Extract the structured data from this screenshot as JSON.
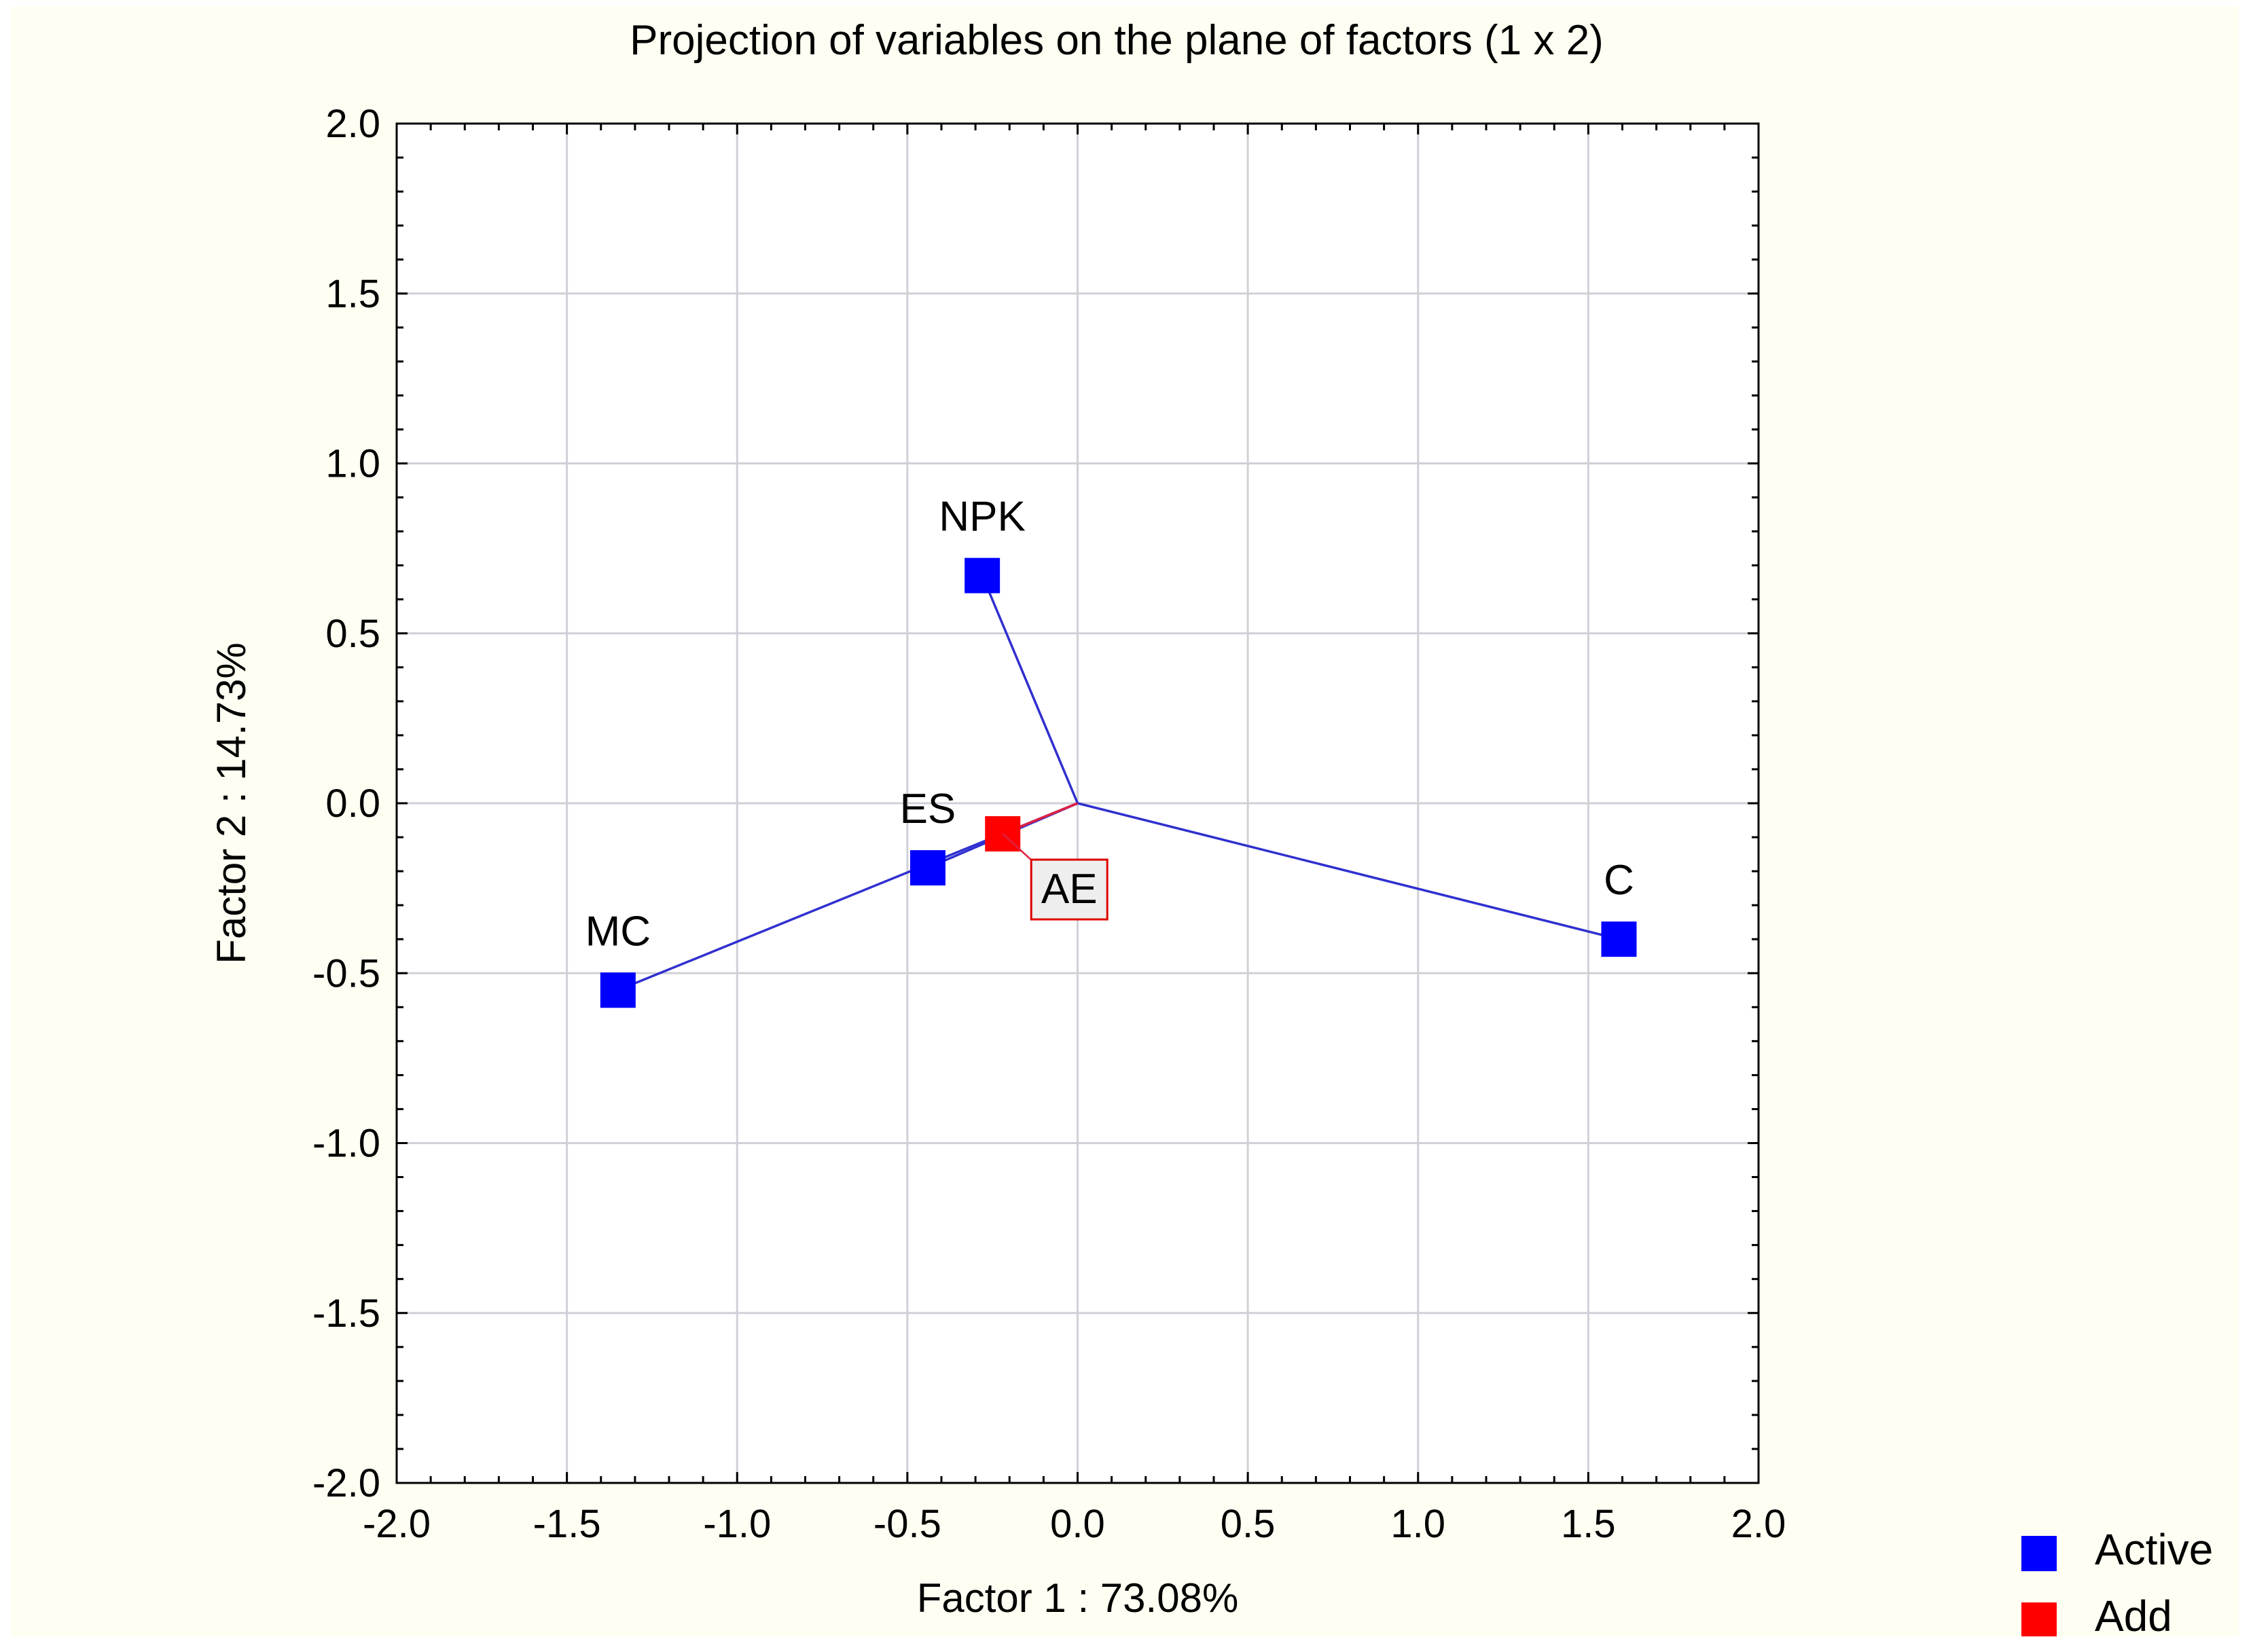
{
  "chart_data": {
    "type": "scatter",
    "title": "Projection of variables on the plane of factors (1 x 2)",
    "xlabel": "Factor 1 : 73.08%",
    "ylabel": "Factor 2 : 14.73%",
    "xlim": [
      -2.0,
      2.0
    ],
    "ylim": [
      -2.0,
      2.0
    ],
    "x_ticks": [
      "-2.0",
      "-1.5",
      "-1.0",
      "-0.5",
      "0.0",
      "0.5",
      "1.0",
      "1.5",
      "2.0"
    ],
    "y_ticks": [
      "2.0",
      "1.5",
      "1.0",
      "0.5",
      "0.0",
      "-0.5",
      "-1.0",
      "-1.5",
      "-2.0"
    ],
    "grid": true,
    "legend_placement": "bottom-right",
    "series": [
      {
        "name": "Active",
        "color": "#0000ff",
        "points": [
          {
            "label": "NPK",
            "x": -0.28,
            "y": 0.67
          },
          {
            "label": "ES",
            "x": -0.44,
            "y": -0.19
          },
          {
            "label": "MC",
            "x": -1.35,
            "y": -0.55
          },
          {
            "label": "C",
            "x": 1.59,
            "y": -0.4
          }
        ]
      },
      {
        "name": "Add",
        "color": "#ff0000",
        "points": [
          {
            "label": "AE",
            "x": -0.22,
            "y": -0.09
          }
        ]
      }
    ],
    "vector_origin": [
      0.0,
      0.0
    ],
    "line_color_active": "#3030d0",
    "line_color_add": "#e02040",
    "grid_color": "#d0d0d8"
  }
}
